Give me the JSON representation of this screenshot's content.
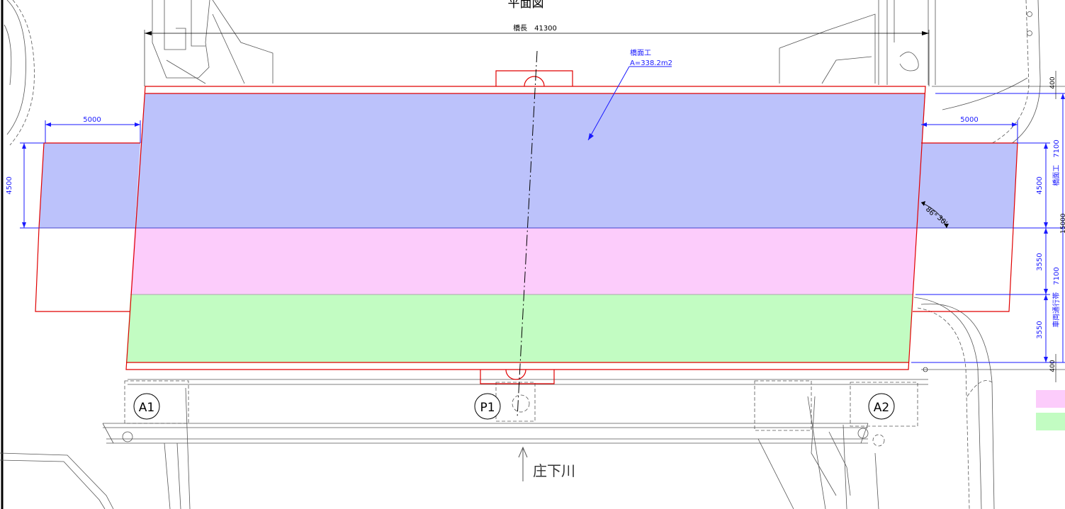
{
  "title": "平面図",
  "bridge_length_label": "橋長　41300",
  "deck_label": "橋面工",
  "deck_area": "A=338.2m2",
  "left_width_label": "5000",
  "right_width_label": "5000",
  "left_dim_4500": "4500",
  "right_dim_4500": "4500",
  "right_dim_7100_top": "橋面工　7100",
  "right_dim_3550_a": "3550",
  "right_dim_3550_b": "3550",
  "right_dim_7100_bottom": "車両通行帯　7100",
  "dim_400_top": "400",
  "dim_400_bottom": "400",
  "dim_15000_partial": "15000",
  "angle_label_deg": "86°",
  "angle_label_min": "30'",
  "support_a1": "A1",
  "support_p1": "P1",
  "support_a2": "A2",
  "river_label": "庄下川",
  "colors": {
    "blue_fill": "#bcc2fb",
    "pink_fill": "#fcccfb",
    "green_fill": "#c2fcc2",
    "outline_red": "#e00000",
    "dimension_blue": "#1a1aff"
  },
  "legend": [
    {
      "color": "#fcccfb"
    },
    {
      "color": "#c2fcc2"
    }
  ]
}
